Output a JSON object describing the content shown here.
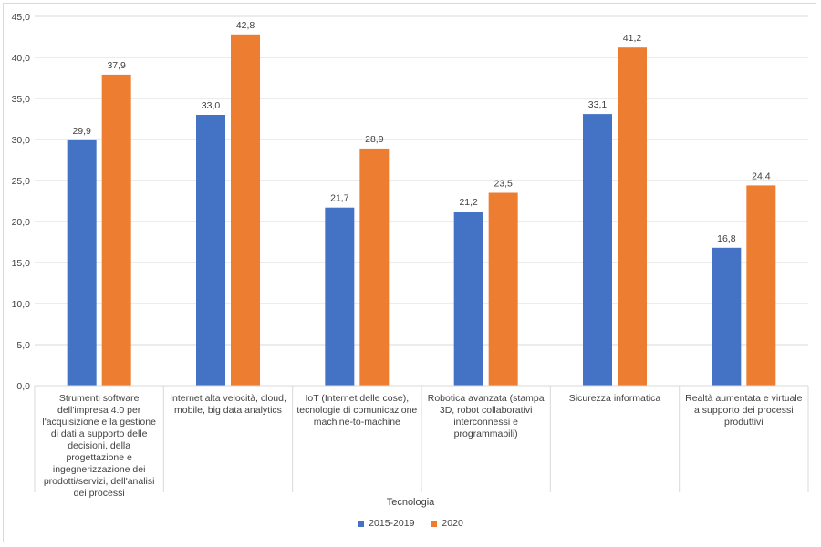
{
  "chart_data": {
    "type": "bar",
    "xlabel": "Tecnologia",
    "ylim": [
      0,
      45
    ],
    "ytick_step": 5,
    "ytick_labels": [
      "0,0",
      "5,0",
      "10,0",
      "15,0",
      "20,0",
      "25,0",
      "30,0",
      "35,0",
      "40,0",
      "45,0"
    ],
    "grid": true,
    "legend_position": "bottom",
    "categories": [
      "Strumenti software dell'impresa 4.0 per l'acquisizione e la gestione di dati a supporto delle decisioni, della progettazione e ingegnerizzazione dei prodotti/servizi, dell'analisi dei processi",
      "Internet alta velocità, cloud, mobile, big data analytics",
      "IoT (Internet delle cose), tecnologie di comunicazione machine-to-machine",
      "Robotica avanzata (stampa 3D, robot collaborativi interconnessi e programmabili)",
      "Sicurezza informatica",
      "Realtà aumentata e virtuale a supporto dei processi produttivi"
    ],
    "series": [
      {
        "name": "2015-2019",
        "color": "#4472c4",
        "values": [
          29.9,
          33.0,
          21.7,
          21.2,
          33.1,
          16.8
        ],
        "labels": [
          "29,9",
          "33,0",
          "21,7",
          "21,2",
          "33,1",
          "16,8"
        ]
      },
      {
        "name": "2020",
        "color": "#ed7d31",
        "values": [
          37.9,
          42.8,
          28.9,
          23.5,
          41.2,
          24.4
        ],
        "labels": [
          "37,9",
          "42,8",
          "28,9",
          "23,5",
          "41,2",
          "24,4"
        ]
      }
    ]
  }
}
